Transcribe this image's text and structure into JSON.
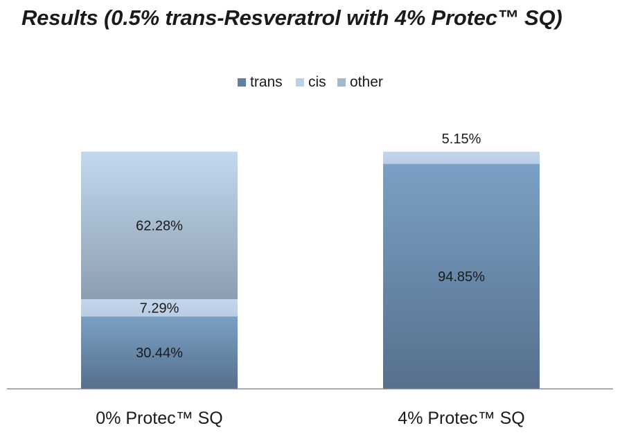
{
  "page": {
    "title": "Results (0.5% trans-Resveratrol with 4% Protec™ SQ)"
  },
  "chart_data": {
    "type": "bar",
    "stacked": true,
    "percent_stacked": true,
    "title": "Results (0.5% trans-Resveratrol with 4% Protec™ SQ)",
    "xlabel": "",
    "ylabel": "",
    "ylim": [
      0,
      100
    ],
    "grid": false,
    "legend_position": "top",
    "categories": [
      "0% Protec™ SQ",
      "4% Protec™ SQ"
    ],
    "series": [
      {
        "name": "trans",
        "values": [
          30.44,
          94.85
        ],
        "labels": [
          "30.44%",
          "94.85%"
        ],
        "color": "#5f80a3"
      },
      {
        "name": "cis",
        "values": [
          7.29,
          5.15
        ],
        "labels": [
          "7.29%",
          "5.15%"
        ],
        "color": "#bccfe6"
      },
      {
        "name": "other",
        "values": [
          62.28,
          0
        ],
        "labels": [
          "62.28%",
          ""
        ],
        "color": "#a6b8cc"
      }
    ]
  }
}
